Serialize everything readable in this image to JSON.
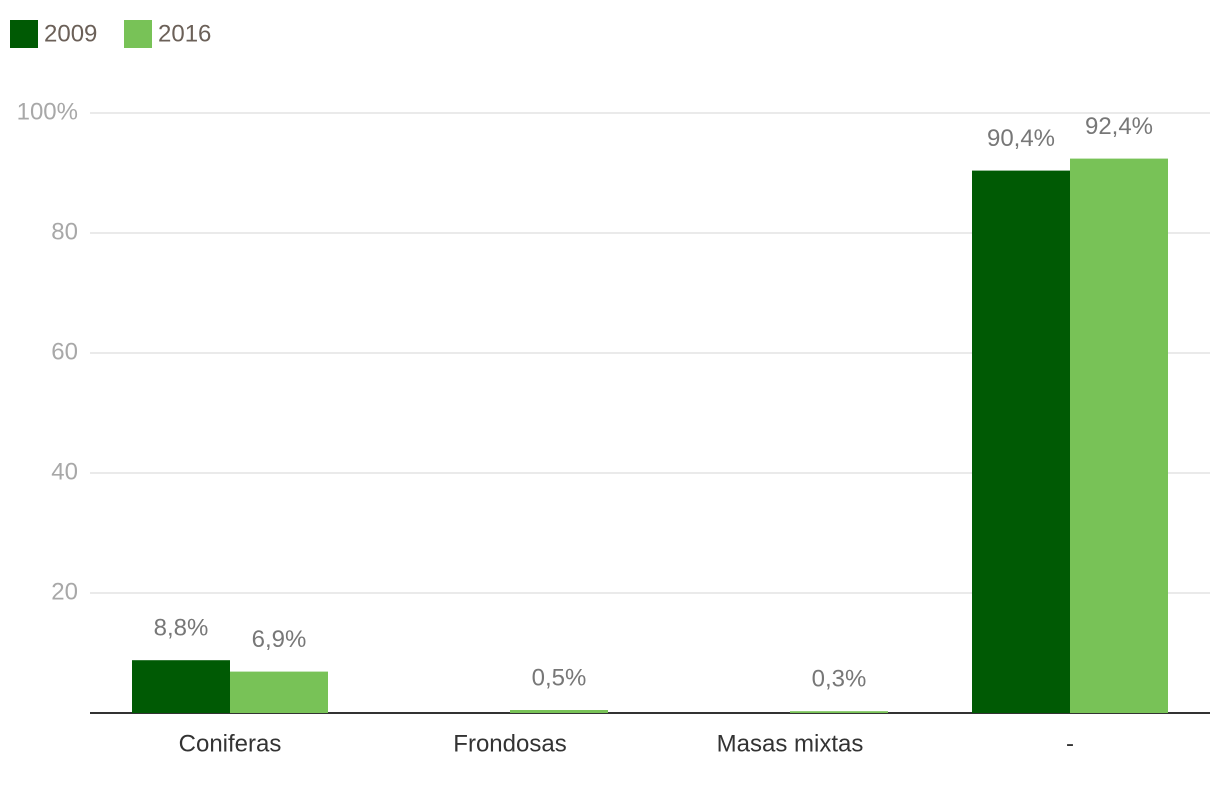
{
  "chart_data": {
    "type": "bar",
    "categories": [
      "Coniferas",
      "Frondosas",
      "Masas mixtas",
      "-"
    ],
    "series": [
      {
        "name": "2009",
        "color": "#005a04",
        "values": [
          8.8,
          null,
          null,
          90.4
        ],
        "value_labels": [
          "8,8%",
          null,
          null,
          "90,4%"
        ]
      },
      {
        "name": "2016",
        "color": "#78c257",
        "values": [
          6.9,
          0.5,
          0.3,
          92.4
        ],
        "value_labels": [
          "6,9%",
          "0,5%",
          "0,3%",
          "92,4%"
        ]
      }
    ],
    "ylim": [
      0,
      100
    ],
    "yticks": [
      20,
      40,
      60,
      80,
      {
        "value": 100,
        "label": "100%"
      }
    ],
    "grid": true
  }
}
